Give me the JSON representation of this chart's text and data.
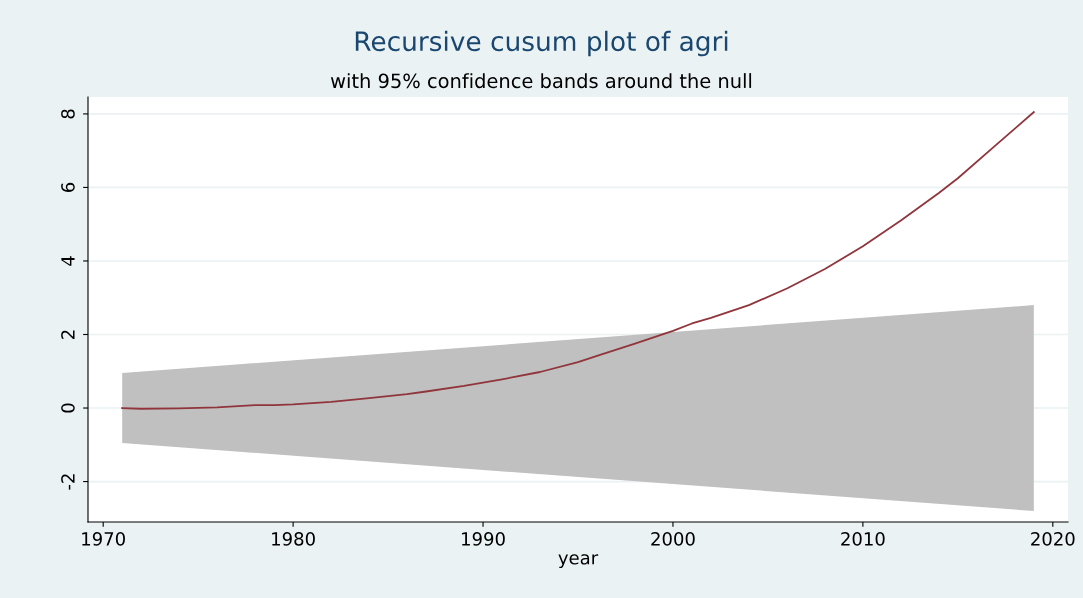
{
  "chart_data": {
    "type": "line",
    "title": "Recursive cusum plot of agri",
    "subtitle": "with 95% confidence bands around the null",
    "xlabel": "year",
    "series": [
      {
        "type": "area",
        "color": "#c0c0c0",
        "x": [
          1971,
          2019,
          2019,
          1971
        ],
        "values": [
          0.95,
          2.8,
          -2.8,
          -0.95
        ]
      },
      {
        "color": "#90353b",
        "x": [
          1971,
          1972,
          1974,
          1976,
          1978,
          1979,
          1980,
          1982,
          1984,
          1986,
          1987,
          1989,
          1991,
          1993,
          1995,
          1996,
          1998,
          2000,
          2001,
          2002,
          2004,
          2006,
          2008,
          2010,
          2012,
          2014,
          2015,
          2017,
          2019
        ],
        "values": [
          0,
          -0.02,
          -0.01,
          0.02,
          0.08,
          0.08,
          0.1,
          0.17,
          0.27,
          0.38,
          0.45,
          0.6,
          0.78,
          0.98,
          1.25,
          1.42,
          1.75,
          2.1,
          2.3,
          2.45,
          2.8,
          3.25,
          3.78,
          4.4,
          5.1,
          5.85,
          6.25,
          7.15,
          8.05
        ]
      }
    ],
    "xlim": [
      1969.2,
      2020.8
    ],
    "xticks": [
      1970,
      1980,
      1990,
      2000,
      2010,
      2020
    ],
    "ylim": [
      -3.1,
      8.46
    ],
    "yticks": [
      {
        "value": -2,
        "label": "-2"
      },
      0,
      2,
      4,
      6,
      8
    ],
    "grid": "y",
    "legend": false
  }
}
